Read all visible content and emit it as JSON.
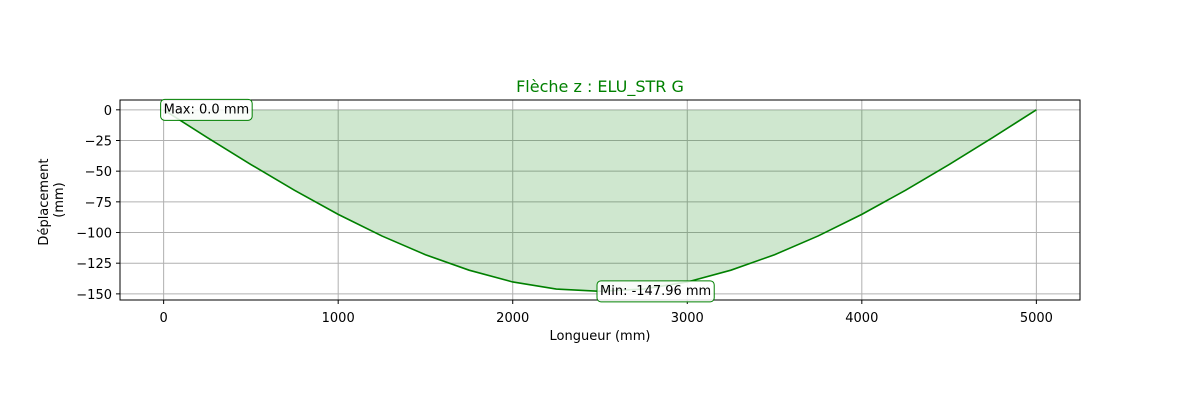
{
  "chart_data": {
    "type": "area",
    "title": "Flèche z : ELU_STR G",
    "xlabel": "Longueur (mm)",
    "ylabel": [
      "Déplacement",
      "(mm)"
    ],
    "xlim": [
      -250,
      5250
    ],
    "ylim": [
      -155,
      8
    ],
    "xticks": [
      0,
      1000,
      2000,
      3000,
      4000,
      5000
    ],
    "yticks": [
      0,
      -25,
      -50,
      -75,
      -100,
      -125,
      -150
    ],
    "grid": true,
    "colors": {
      "line": "#008000",
      "fill": "#008000",
      "fill_opacity": 0.19,
      "grid": "#b0b0b0",
      "title": "#008000"
    },
    "series": [
      {
        "x": [
          0,
          250,
          500,
          750,
          1000,
          1250,
          1500,
          1750,
          2000,
          2250,
          2500,
          2750,
          3000,
          3250,
          3500,
          3750,
          4000,
          4250,
          4500,
          4750,
          5000
        ],
        "values": [
          0.0,
          -22.6,
          -44.6,
          -65.6,
          -85.2,
          -102.8,
          -118.1,
          -130.7,
          -140.3,
          -146.1,
          -147.96,
          -146.1,
          -140.3,
          -130.7,
          -118.1,
          -102.8,
          -85.2,
          -65.6,
          -44.6,
          -22.6,
          0.0
        ]
      }
    ],
    "annotations": [
      {
        "text": "Max: 0.0 mm",
        "x": 0,
        "y": 0.0
      },
      {
        "text": "Min: -147.96 mm",
        "x": 2500,
        "y": -147.96
      }
    ]
  }
}
